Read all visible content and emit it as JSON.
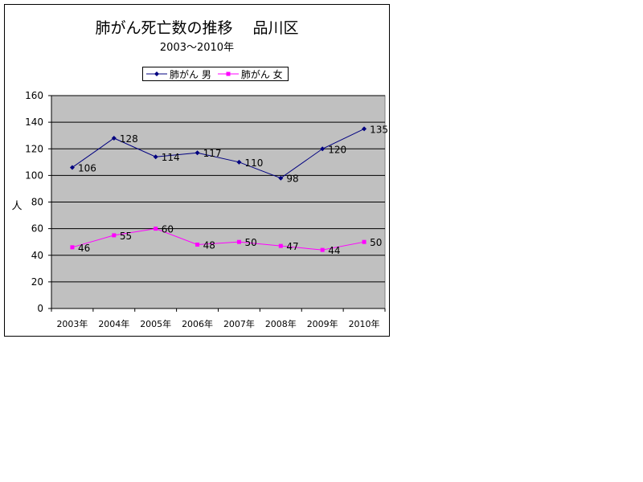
{
  "chart_data": {
    "type": "line",
    "title": "肺がん死亡数の推移　 品川区",
    "subtitle": "2003～2010年",
    "xlabel": "",
    "ylabel": "人",
    "ylim": [
      0,
      160
    ],
    "yticks": [
      0,
      20,
      40,
      60,
      80,
      100,
      120,
      140,
      160
    ],
    "categories": [
      "2003年",
      "2004年",
      "2005年",
      "2006年",
      "2007年",
      "2008年",
      "2009年",
      "2010年"
    ],
    "series": [
      {
        "name": "肺がん 男",
        "values": [
          106,
          128,
          114,
          117,
          110,
          98,
          120,
          135
        ],
        "color": "#000080",
        "marker": "diamond"
      },
      {
        "name": "肺がん 女",
        "values": [
          46,
          55,
          60,
          48,
          50,
          47,
          44,
          50
        ],
        "color": "#ff00ff",
        "marker": "square"
      }
    ],
    "grid": true,
    "plot_background": "#c0c0c0",
    "legend_position": "top"
  }
}
